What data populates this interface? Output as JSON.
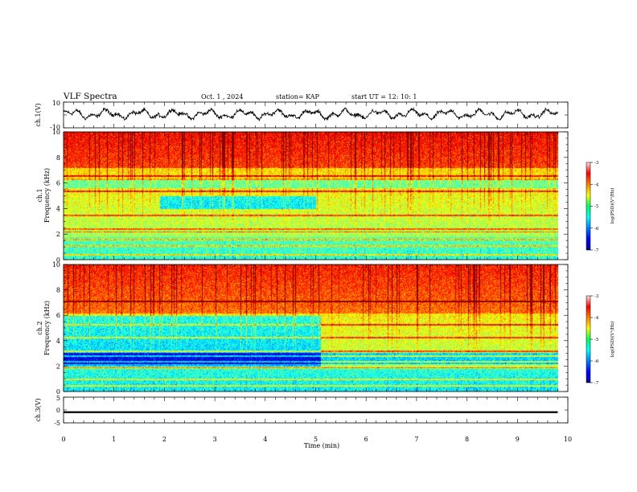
{
  "header": {
    "title": "VLF Spectra",
    "date": "Oct. 1 , 2024",
    "station": "station= KAP",
    "start": "start UT =  12: 10: 1"
  },
  "chart_data": [
    {
      "type": "line",
      "name": "ch1_waveform",
      "ylabel": "ch.1(V)",
      "ylim": [
        -10,
        10
      ],
      "yticks": [
        "10",
        "-10"
      ],
      "xlim": [
        0,
        10
      ]
    },
    {
      "type": "heatmap",
      "name": "ch1_spectrogram",
      "ylabel": "ch.1\nFrequency (kHz)",
      "ylabel_lines": [
        "ch.1",
        "Frequency (kHz)"
      ],
      "ylim": [
        0,
        10
      ],
      "yticks": [
        "0",
        "2",
        "4",
        "6",
        "8",
        "10"
      ],
      "xlim": [
        0,
        10
      ],
      "data_end_min": 9.8,
      "colorbar": {
        "label": "log(PSD)(V²/Hz)",
        "range": [
          -7,
          -3
        ],
        "ticks": [
          "-3",
          "-4",
          "-5",
          "-6",
          "-7"
        ]
      },
      "quiet_band": {
        "t_start": 1.9,
        "t_end": 5.0,
        "f_low": 4.0,
        "f_high": 5.0
      }
    },
    {
      "type": "heatmap",
      "name": "ch2_spectrogram",
      "ylabel": "ch.2\nFrequency (kHz)",
      "ylabel_lines": [
        "ch.2",
        "Frequency (kHz)"
      ],
      "ylim": [
        0,
        10
      ],
      "yticks": [
        "0",
        "2",
        "4",
        "6",
        "8",
        "10"
      ],
      "xlim": [
        0,
        10
      ],
      "data_end_min": 9.8,
      "colorbar": {
        "label": "log(PSD)(V²/Hz)",
        "range": [
          -7,
          -3
        ],
        "ticks": [
          "-3",
          "-4",
          "-5",
          "-6",
          "-7"
        ]
      },
      "quiet_band": {
        "t_start": 0.0,
        "t_end": 5.1,
        "f_low": 2.0,
        "f_high": 6.0
      }
    },
    {
      "type": "line",
      "name": "ch3_signal",
      "ylabel": "ch.3(V)",
      "ylim": [
        -5,
        5
      ],
      "yticks": [
        "5",
        "0",
        "-5"
      ],
      "xlim": [
        0,
        10
      ],
      "level": [
        -1.2,
        -0.5
      ],
      "data_end_min": 9.8
    }
  ],
  "time_axis": {
    "label": "Time (min)",
    "ticks": [
      "0",
      "1",
      "2",
      "3",
      "4",
      "5",
      "6",
      "7",
      "8",
      "9",
      "10"
    ]
  }
}
